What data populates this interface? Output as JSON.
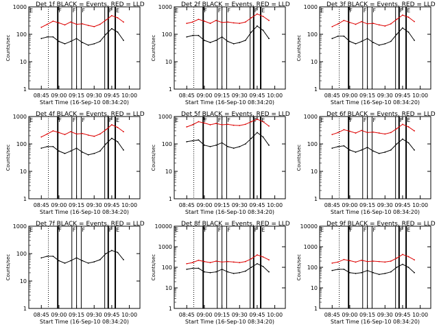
{
  "colors": {
    "events": "#000000",
    "lld": "#dd0000",
    "axes": "#000000",
    "background": "#ffffff"
  },
  "common": {
    "ylabel": "Counts/sec",
    "xlabel": "Start Time (16-Sep-10 08:34:20)",
    "tick_labels": [
      "08:45",
      "09:00",
      "09:15",
      "09:30",
      "09:45",
      "10:00"
    ]
  },
  "chart_data": [
    {
      "type": "line",
      "title": "Det 1f BLACK = Events, RED = LLD",
      "yscale": "log",
      "ylim": [
        1,
        1000
      ],
      "ytick_labels": [
        "1",
        "10",
        "100",
        "1000"
      ],
      "x": [
        "08:40",
        "08:45",
        "08:50",
        "08:55",
        "09:00",
        "09:05",
        "09:10",
        "09:15",
        "09:20",
        "09:25",
        "09:30",
        "09:35",
        "09:40",
        "09:45",
        "09:50",
        "09:55"
      ],
      "series": [
        {
          "name": "LLD",
          "values": [
            null,
            180,
            230,
            300,
            260,
            220,
            280,
            230,
            240,
            210,
            190,
            230,
            330,
            480,
            400,
            280
          ]
        },
        {
          "name": "Events",
          "values": [
            null,
            70,
            80,
            80,
            55,
            45,
            55,
            70,
            50,
            40,
            45,
            55,
            100,
            160,
            120,
            60
          ]
        }
      ]
    },
    {
      "type": "line",
      "title": "Det 2f BLACK = Events, RED = LLD",
      "yscale": "log",
      "ylim": [
        1,
        1000
      ],
      "ytick_labels": [
        "1",
        "10",
        "100",
        "1000"
      ],
      "x": [
        "08:40",
        "08:45",
        "08:50",
        "08:55",
        "09:00",
        "09:05",
        "09:10",
        "09:15",
        "09:20",
        "09:25",
        "09:30",
        "09:35",
        "09:40",
        "09:45",
        "09:50",
        "09:55"
      ],
      "series": [
        {
          "name": "LLD",
          "values": [
            null,
            250,
            280,
            350,
            300,
            250,
            320,
            270,
            280,
            260,
            250,
            280,
            400,
            550,
            450,
            320
          ]
        },
        {
          "name": "Events",
          "values": [
            null,
            80,
            90,
            90,
            60,
            50,
            60,
            80,
            55,
            45,
            50,
            60,
            120,
            200,
            140,
            70
          ]
        }
      ]
    },
    {
      "type": "line",
      "title": "Det 3f BLACK = Events, RED = LLD",
      "yscale": "log",
      "ylim": [
        1,
        1000
      ],
      "ytick_labels": [
        "1",
        "10",
        "100",
        "1000"
      ],
      "x": [
        "08:40",
        "08:45",
        "08:50",
        "08:55",
        "09:00",
        "09:05",
        "09:10",
        "09:15",
        "09:20",
        "09:25",
        "09:30",
        "09:35",
        "09:40",
        "09:45",
        "09:50",
        "09:55"
      ],
      "series": [
        {
          "name": "LLD",
          "values": [
            null,
            190,
            240,
            320,
            270,
            230,
            290,
            240,
            250,
            220,
            200,
            240,
            350,
            500,
            420,
            290
          ]
        },
        {
          "name": "Events",
          "values": [
            null,
            70,
            85,
            85,
            55,
            45,
            55,
            70,
            50,
            40,
            45,
            55,
            100,
            170,
            120,
            60
          ]
        }
      ]
    },
    {
      "type": "line",
      "title": "Det 4f BLACK = Events, RED = LLD",
      "yscale": "log",
      "ylim": [
        1,
        1000
      ],
      "ytick_labels": [
        "1",
        "10",
        "100",
        "1000"
      ],
      "x": [
        "08:40",
        "08:45",
        "08:50",
        "08:55",
        "09:00",
        "09:05",
        "09:10",
        "09:15",
        "09:20",
        "09:25",
        "09:30",
        "09:35",
        "09:40",
        "09:45",
        "09:50",
        "09:55"
      ],
      "series": [
        {
          "name": "LLD",
          "values": [
            null,
            180,
            230,
            300,
            260,
            220,
            280,
            230,
            240,
            210,
            190,
            230,
            330,
            500,
            400,
            280
          ]
        },
        {
          "name": "Events",
          "values": [
            null,
            70,
            80,
            80,
            55,
            45,
            55,
            70,
            50,
            40,
            45,
            55,
            100,
            160,
            120,
            60
          ]
        }
      ]
    },
    {
      "type": "line",
      "title": "Det 5f BLACK = Events, RED = LLD",
      "yscale": "log",
      "ylim": [
        1,
        1000
      ],
      "ytick_labels": [
        "1",
        "10",
        "100",
        "1000"
      ],
      "x": [
        "08:40",
        "08:45",
        "08:50",
        "08:55",
        "09:00",
        "09:05",
        "09:10",
        "09:15",
        "09:20",
        "09:25",
        "09:30",
        "09:35",
        "09:40",
        "09:45",
        "09:50",
        "09:55"
      ],
      "series": [
        {
          "name": "LLD",
          "values": [
            null,
            420,
            500,
            650,
            580,
            500,
            560,
            500,
            520,
            480,
            470,
            520,
            650,
            800,
            650,
            450
          ]
        },
        {
          "name": "Events",
          "values": [
            null,
            120,
            130,
            140,
            90,
            80,
            90,
            110,
            80,
            70,
            80,
            100,
            160,
            260,
            180,
            90
          ]
        }
      ]
    },
    {
      "type": "line",
      "title": "Det 6f BLACK = Events, RED = LLD",
      "yscale": "log",
      "ylim": [
        1,
        1000
      ],
      "ytick_labels": [
        "1",
        "10",
        "100",
        "1000"
      ],
      "x": [
        "08:40",
        "08:45",
        "08:50",
        "08:55",
        "09:00",
        "09:05",
        "09:10",
        "09:15",
        "09:20",
        "09:25",
        "09:30",
        "09:35",
        "09:40",
        "09:45",
        "09:50",
        "09:55"
      ],
      "series": [
        {
          "name": "LLD",
          "values": [
            null,
            220,
            260,
            330,
            290,
            250,
            310,
            260,
            270,
            250,
            230,
            260,
            360,
            520,
            420,
            300
          ]
        },
        {
          "name": "Events",
          "values": [
            null,
            70,
            80,
            85,
            60,
            50,
            60,
            75,
            55,
            45,
            50,
            60,
            100,
            150,
            110,
            60
          ]
        }
      ]
    },
    {
      "type": "line",
      "title": "Det 7f BLACK = Events, RED = LLD",
      "yscale": "log",
      "ylim": [
        1,
        1000
      ],
      "ytick_labels": [
        "1",
        "10",
        "100",
        "1000"
      ],
      "x": [
        "08:40",
        "08:45",
        "08:50",
        "08:55",
        "09:00",
        "09:05",
        "09:10",
        "09:15",
        "09:20",
        "09:25",
        "09:30",
        "09:35",
        "09:40",
        "09:45",
        "09:50",
        "09:55"
      ],
      "series": [
        {
          "name": "Events",
          "values": [
            null,
            70,
            80,
            80,
            55,
            45,
            55,
            70,
            55,
            45,
            50,
            60,
            100,
            130,
            110,
            60
          ]
        }
      ]
    },
    {
      "type": "line",
      "title": "Det 8f BLACK = Events, RED = LLD",
      "yscale": "log",
      "ylim": [
        1,
        10000
      ],
      "ytick_labels": [
        "1",
        "10",
        "100",
        "1000",
        "10000"
      ],
      "x": [
        "08:40",
        "08:45",
        "08:50",
        "08:55",
        "09:00",
        "09:05",
        "09:10",
        "09:15",
        "09:20",
        "09:25",
        "09:30",
        "09:35",
        "09:40",
        "09:45",
        "09:50",
        "09:55"
      ],
      "series": [
        {
          "name": "LLD",
          "values": [
            null,
            150,
            170,
            220,
            190,
            170,
            200,
            180,
            190,
            180,
            170,
            190,
            260,
            400,
            320,
            230
          ]
        },
        {
          "name": "Events",
          "values": [
            null,
            80,
            90,
            90,
            60,
            55,
            60,
            80,
            60,
            50,
            55,
            65,
            100,
            150,
            110,
            60
          ]
        }
      ]
    },
    {
      "type": "line",
      "title": "Det 9f BLACK = Events, RED = LLD",
      "yscale": "log",
      "ylim": [
        1,
        10000
      ],
      "ytick_labels": [
        "1",
        "10",
        "100",
        "1000",
        "10000"
      ],
      "x": [
        "08:40",
        "08:45",
        "08:50",
        "08:55",
        "09:00",
        "09:05",
        "09:10",
        "09:15",
        "09:20",
        "09:25",
        "09:30",
        "09:35",
        "09:40",
        "09:45",
        "09:50",
        "09:55"
      ],
      "series": [
        {
          "name": "LLD",
          "values": [
            null,
            160,
            180,
            240,
            210,
            180,
            220,
            190,
            200,
            190,
            180,
            200,
            280,
            420,
            330,
            230
          ]
        },
        {
          "name": "Events",
          "values": [
            null,
            70,
            80,
            80,
            55,
            50,
            55,
            70,
            55,
            45,
            50,
            60,
            100,
            140,
            100,
            55
          ]
        }
      ]
    }
  ]
}
